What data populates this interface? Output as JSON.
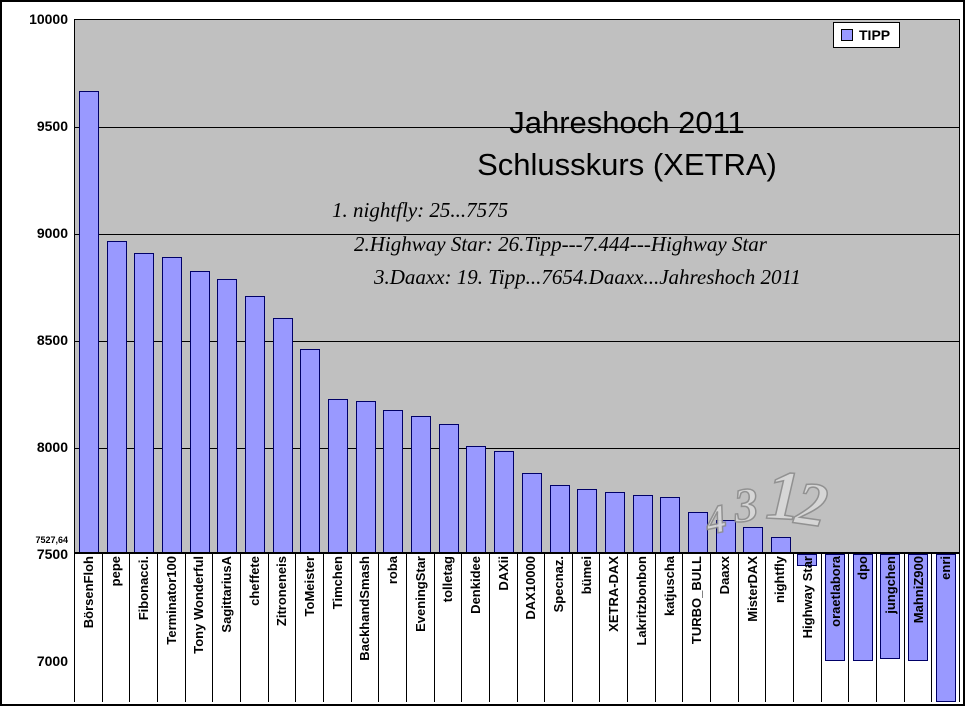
{
  "title": {
    "line1": "Jahreshoch 2011",
    "line2": "Schlusskurs (XETRA)"
  },
  "legend": {
    "label": "TIPP"
  },
  "annotations": {
    "note1": "1.  nightfly: 25...7575",
    "note2": "2.Highway Star: 26.Tipp---7.444---Highway Star",
    "note3": "3.Daaxx: 19. Tipp...7654.Daaxx...Jahreshoch 2011",
    "rank_digits": [
      "4",
      "3",
      "1",
      "2"
    ],
    "axis_extra_label": "7527,64"
  },
  "chart_data": {
    "type": "bar",
    "title": "Jahreshoch 2011 Schlusskurs (XETRA)",
    "series_name": "TIPP",
    "legend_position": "top-right",
    "grid": true,
    "categories": [
      "BörsenFloh",
      "pepe",
      "Fibonacci.",
      "Terminator100",
      "Tony Wonderful",
      "SagittariusA",
      "cheffete",
      "Zitroneneis",
      "ToMeister",
      "Timchen",
      "BackhandSmash",
      "roba",
      "EveningStar",
      "tolletag",
      "Denkidee",
      "DAXii",
      "DAX10000",
      "Specnaz.",
      "bümei",
      "XETRA-DAX",
      "Lakritzbonbon",
      "katjuscha",
      "TURBO_BULL",
      "Daaxx",
      "MisterDAX",
      "nightfly",
      "Highway Star",
      "oraetlabora",
      "dpo",
      "jungchen",
      "MahniZ900",
      "enri"
    ],
    "values": [
      9660,
      8960,
      8900,
      8885,
      8820,
      8780,
      8700,
      8600,
      8455,
      8220,
      8210,
      8170,
      8140,
      8105,
      8000,
      7975,
      7875,
      7820,
      7800,
      7785,
      7770,
      7760,
      7690,
      7654,
      7620,
      7575,
      7444,
      7000,
      7000,
      7010,
      7000,
      6800
    ],
    "ylim": [
      7000,
      10000
    ],
    "y_ticks": [
      10000,
      9500,
      9000,
      8500,
      8000,
      7500,
      7000
    ],
    "axis_cross": 7500,
    "colors": {
      "bar": "#9999ff",
      "bar_border": "#000066",
      "plot_bg": "#c0c0c0",
      "grid": "#000000"
    }
  }
}
